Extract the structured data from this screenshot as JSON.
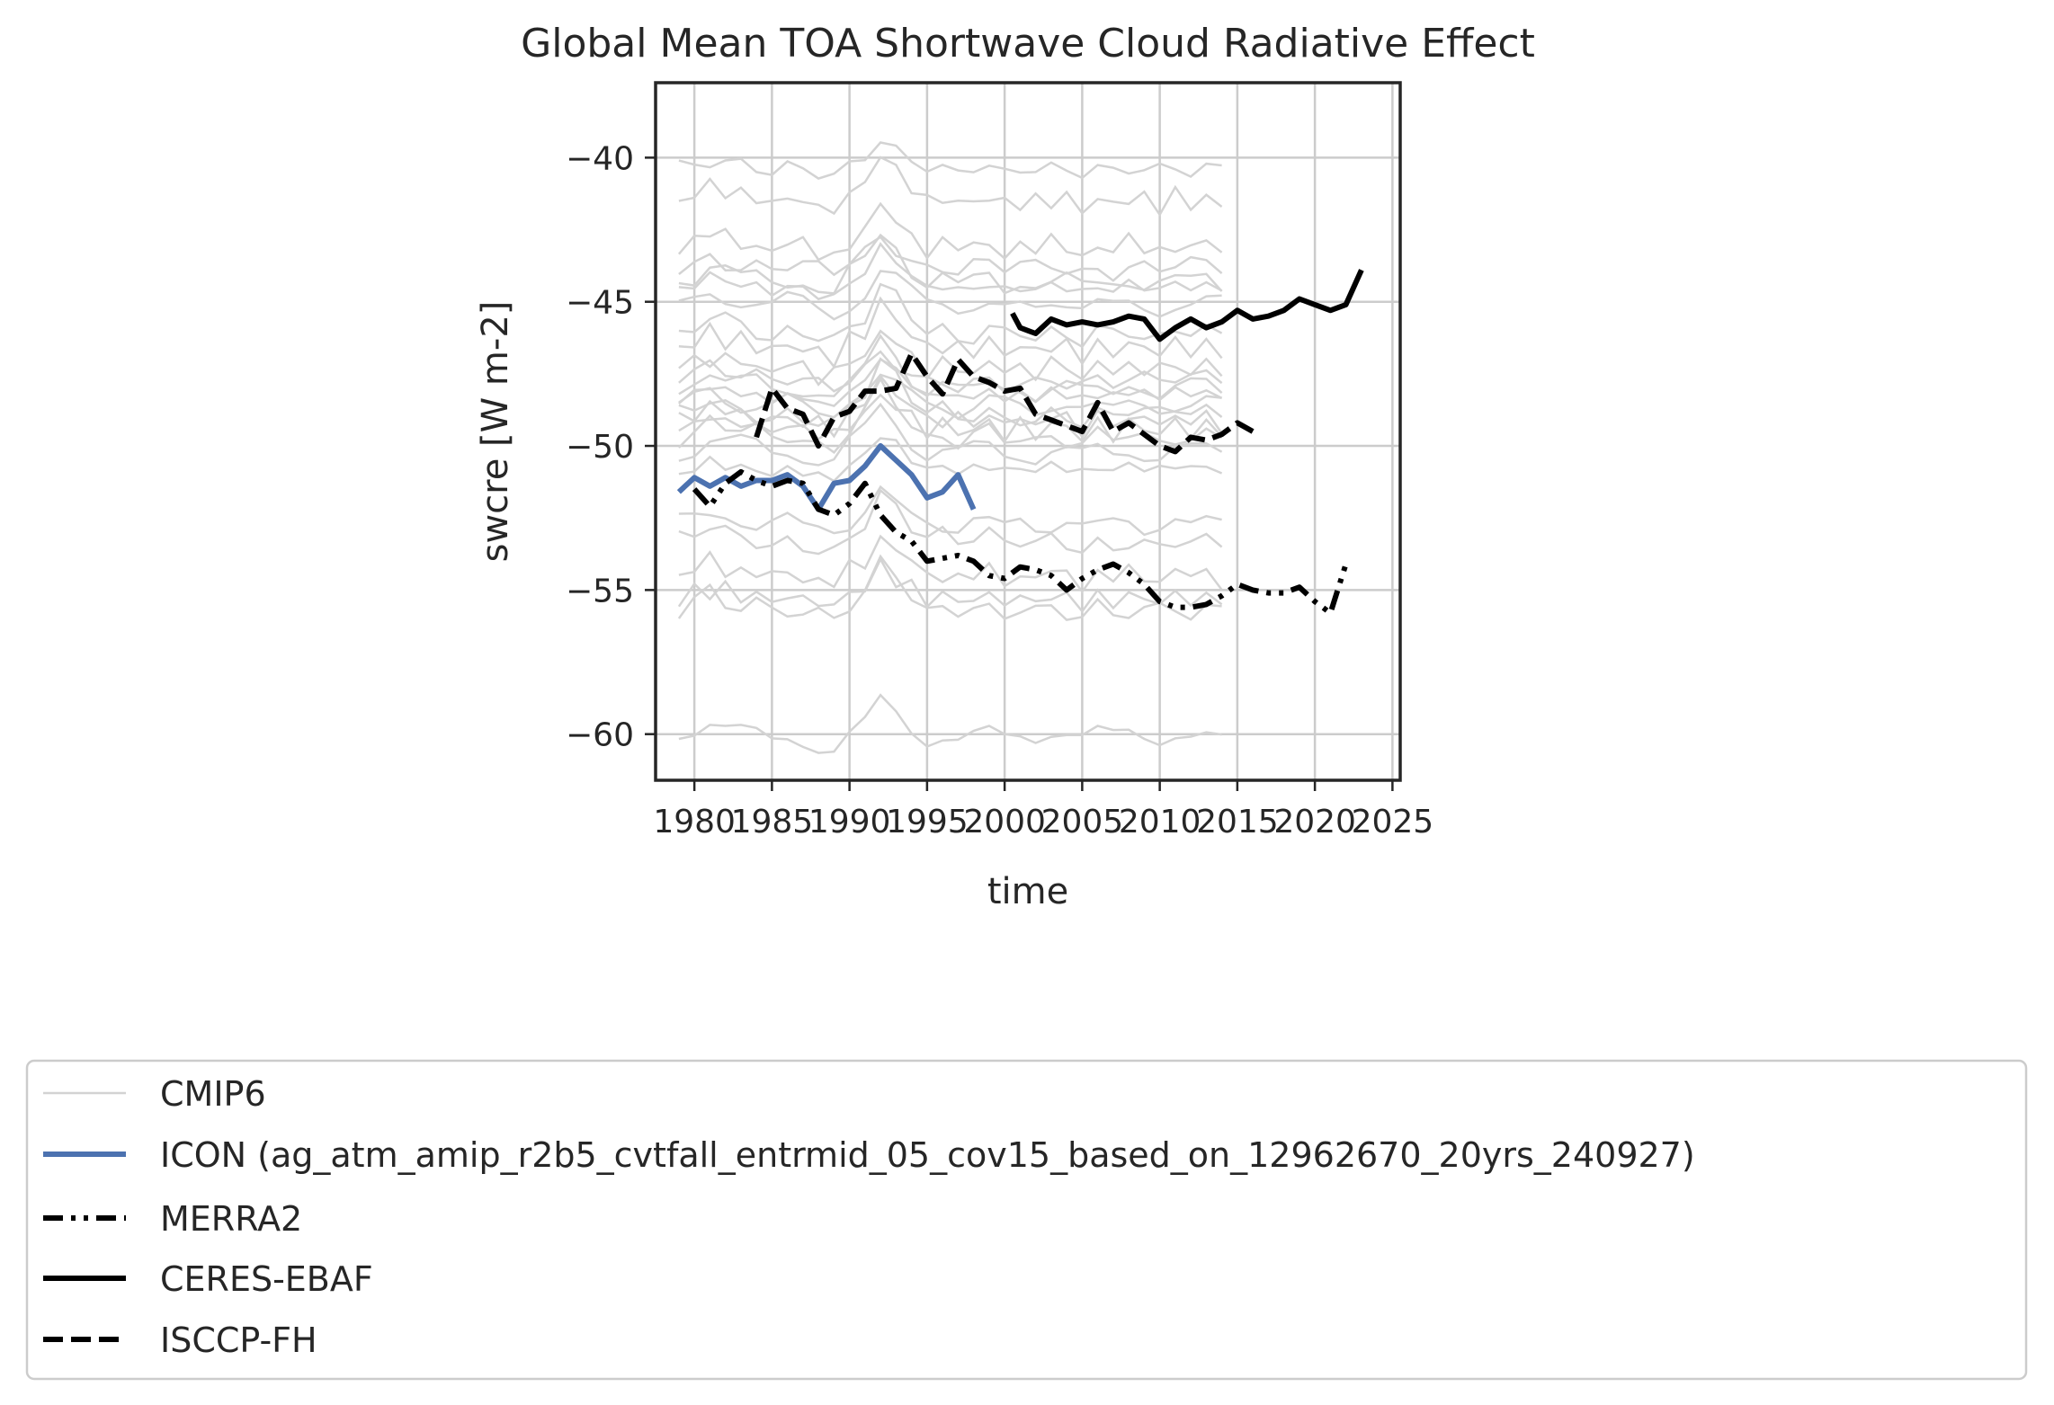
{
  "chart_data": {
    "type": "line",
    "title": "Global Mean TOA Shortwave Cloud Radiative Effect",
    "xlabel": "time",
    "ylabel": "swcre [W m-2]",
    "xlim": [
      1977.5,
      2025.5
    ],
    "ylim": [
      -61.6,
      -37.4
    ],
    "xticks": [
      1980,
      1985,
      1990,
      1995,
      2000,
      2005,
      2010,
      2015,
      2020,
      2025
    ],
    "yticks": [
      -40,
      -45,
      -50,
      -55,
      -60
    ],
    "xtick_labels": [
      "1980",
      "1985",
      "1990",
      "1995",
      "2000",
      "2005",
      "2010",
      "2015",
      "2020",
      "2025"
    ],
    "ytick_labels": [
      "−40",
      "−45",
      "−50",
      "−55",
      "−60"
    ],
    "grid": true,
    "legend_position": "below",
    "legend": [
      "CMIP6",
      "ICON (ag_atm_amip_r2b5_cvtfall_entrmid_05_cov15_based_on_12962670_20yrs_240927)",
      "MERRA2",
      "CERES-EBAF",
      "ISCCP-FH"
    ],
    "cmip6_baselines": [
      -40.4,
      -41.5,
      -43.1,
      -43.8,
      -44.3,
      -44.6,
      -45.1,
      -46.1,
      -46.6,
      -47.3,
      -47.7,
      -48.0,
      -48.4,
      -48.6,
      -48.9,
      -49.1,
      -49.4,
      -49.7,
      -50.2,
      -51.0,
      -52.7,
      -53.3,
      -54.5,
      -55.3,
      -55.7,
      -60.1
    ],
    "cmip6_anomaly": [
      0.0,
      0.2,
      0.5,
      0.3,
      0.2,
      0.1,
      -0.1,
      0.1,
      0.0,
      -0.2,
      -0.3,
      0.2,
      0.6,
      1.4,
      1.0,
      0.4,
      0.0,
      0.1,
      -0.1,
      0.0,
      0.1,
      -0.1,
      0.0,
      -0.1,
      0.1,
      0.0,
      -0.2,
      0.0,
      -0.1,
      0.1,
      0.0,
      -0.1,
      0.1,
      0.0,
      0.0,
      -0.1
    ],
    "cmip6_years": [
      1979,
      1980,
      1981,
      1982,
      1983,
      1984,
      1985,
      1986,
      1987,
      1988,
      1989,
      1990,
      1991,
      1992,
      1993,
      1994,
      1995,
      1996,
      1997,
      1998,
      1999,
      2000,
      2001,
      2002,
      2003,
      2004,
      2005,
      2006,
      2007,
      2008,
      2009,
      2010,
      2011,
      2012,
      2013,
      2014
    ],
    "series": [
      {
        "name": "ICON (ag_atm_amip_r2b5_cvtfall_entrmid_05_cov15_based_on_12962670_20yrs_240927)",
        "color": "#4c72b0",
        "style": "solid",
        "x": [
          1979,
          1980,
          1981,
          1982,
          1983,
          1984,
          1985,
          1986,
          1987,
          1988,
          1989,
          1990,
          1991,
          1992,
          1993,
          1994,
          1995,
          1996,
          1997,
          1998
        ],
        "y": [
          -51.6,
          -51.1,
          -51.4,
          -51.1,
          -51.4,
          -51.2,
          -51.2,
          -51.0,
          -51.4,
          -52.2,
          -51.3,
          -51.2,
          -50.7,
          -50.0,
          -50.5,
          -51.0,
          -51.8,
          -51.6,
          -51.0,
          -52.2
        ]
      },
      {
        "name": "MERRA2",
        "color": "#000000",
        "style": "dashdot",
        "x": [
          1980,
          1981,
          1982,
          1983,
          1984,
          1985,
          1986,
          1987,
          1988,
          1989,
          1990,
          1991,
          1992,
          1993,
          1994,
          1995,
          1996,
          1997,
          1998,
          1999,
          2000,
          2001,
          2002,
          2003,
          2004,
          2005,
          2006,
          2007,
          2008,
          2009,
          2010,
          2011,
          2012,
          2013,
          2014,
          2015,
          2016,
          2017,
          2018,
          2019,
          2020,
          2021,
          2022
        ],
        "y": [
          -51.5,
          -52.1,
          -51.3,
          -50.9,
          -51.2,
          -51.4,
          -51.2,
          -51.3,
          -52.2,
          -52.4,
          -52.0,
          -51.3,
          -52.4,
          -53.0,
          -53.3,
          -54.0,
          -53.9,
          -53.8,
          -54.0,
          -54.5,
          -54.6,
          -54.2,
          -54.3,
          -54.5,
          -55.0,
          -54.6,
          -54.3,
          -54.1,
          -54.4,
          -54.8,
          -55.4,
          -55.6,
          -55.6,
          -55.5,
          -55.2,
          -54.8,
          -55.0,
          -55.1,
          -55.1,
          -54.9,
          -55.4,
          -55.8,
          -54.1
        ]
      },
      {
        "name": "CERES-EBAF",
        "color": "#000000",
        "style": "solid",
        "x": [
          2000.5,
          2001,
          2002,
          2003,
          2004,
          2005,
          2006,
          2007,
          2008,
          2009,
          2010,
          2011,
          2012,
          2013,
          2014,
          2015,
          2016,
          2017,
          2018,
          2019,
          2020,
          2021,
          2022,
          2023
        ],
        "y": [
          -45.4,
          -45.9,
          -46.1,
          -45.6,
          -45.8,
          -45.7,
          -45.8,
          -45.7,
          -45.5,
          -45.6,
          -46.3,
          -45.9,
          -45.6,
          -45.9,
          -45.7,
          -45.3,
          -45.6,
          -45.5,
          -45.3,
          -44.9,
          -45.1,
          -45.3,
          -45.1,
          -43.9
        ]
      },
      {
        "name": "ISCCP-FH",
        "color": "#000000",
        "style": "dashed",
        "x": [
          1984,
          1985,
          1986,
          1987,
          1988,
          1989,
          1990,
          1991,
          1992,
          1993,
          1994,
          1995,
          1996,
          1997,
          1998,
          1999,
          2000,
          2001,
          2002,
          2003,
          2004,
          2005,
          2006,
          2007,
          2008,
          2009,
          2010,
          2011,
          2012,
          2013,
          2014,
          2015,
          2016
        ],
        "y": [
          -49.7,
          -48.0,
          -48.7,
          -48.9,
          -50.0,
          -49.0,
          -48.8,
          -48.1,
          -48.1,
          -48.0,
          -46.8,
          -47.6,
          -48.2,
          -47.0,
          -47.6,
          -47.8,
          -48.1,
          -48.0,
          -48.9,
          -49.1,
          -49.3,
          -49.5,
          -48.5,
          -49.5,
          -49.2,
          -49.6,
          -50.0,
          -50.2,
          -49.7,
          -49.8,
          -49.6,
          -49.2,
          -49.5
        ]
      }
    ]
  },
  "colors": {
    "cmip6": "#d3d3d3",
    "icon": "#4c72b0",
    "obs": "#000000",
    "grid": "#cccccc",
    "axes": "#262626"
  }
}
